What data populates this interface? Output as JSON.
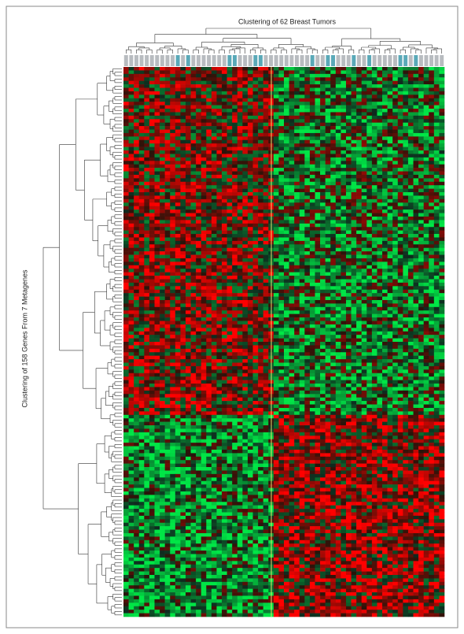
{
  "figure": {
    "column_title": "Clustering of 62 Breast Tumors",
    "row_title": "Clustering of 158 Genes From 7 Metagenes"
  }
}
